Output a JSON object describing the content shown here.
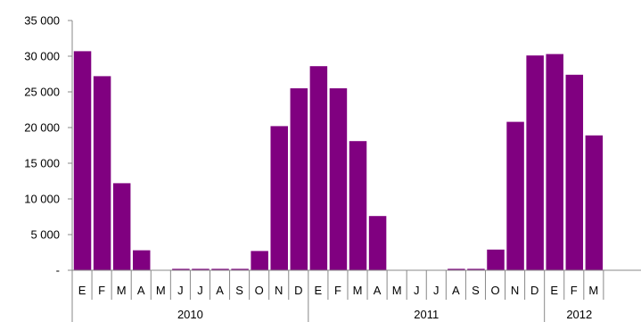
{
  "chart_data": {
    "type": "bar",
    "title": "",
    "xlabel": "",
    "ylabel": "",
    "ylim": [
      0,
      35000
    ],
    "yticks": [
      {
        "value": 0,
        "label": "-"
      },
      {
        "value": 5000,
        "label": "5 000"
      },
      {
        "value": 10000,
        "label": "10 000"
      },
      {
        "value": 15000,
        "label": "15 000"
      },
      {
        "value": 20000,
        "label": "20 000"
      },
      {
        "value": 25000,
        "label": "25 000"
      },
      {
        "value": 30000,
        "label": "30 000"
      },
      {
        "value": 35000,
        "label": "35 000"
      }
    ],
    "bar_color": "#800080",
    "grid": false,
    "legend": "none",
    "categories": [
      "E",
      "F",
      "M",
      "A",
      "M",
      "J",
      "J",
      "A",
      "S",
      "O",
      "N",
      "D",
      "E",
      "F",
      "M",
      "A",
      "M",
      "J",
      "J",
      "A",
      "S",
      "O",
      "N",
      "D",
      "E",
      "F",
      "M"
    ],
    "values": [
      30700,
      27200,
      12200,
      2800,
      0,
      200,
      200,
      200,
      200,
      2700,
      20200,
      25500,
      28600,
      25500,
      18100,
      7600,
      0,
      0,
      0,
      200,
      200,
      2900,
      20800,
      30100,
      30300,
      27400,
      18900
    ],
    "groups": [
      {
        "label": "2010",
        "start": 0,
        "count": 12
      },
      {
        "label": "2011",
        "start": 12,
        "count": 12
      },
      {
        "label": "2012",
        "start": 24,
        "count": 3
      }
    ]
  }
}
